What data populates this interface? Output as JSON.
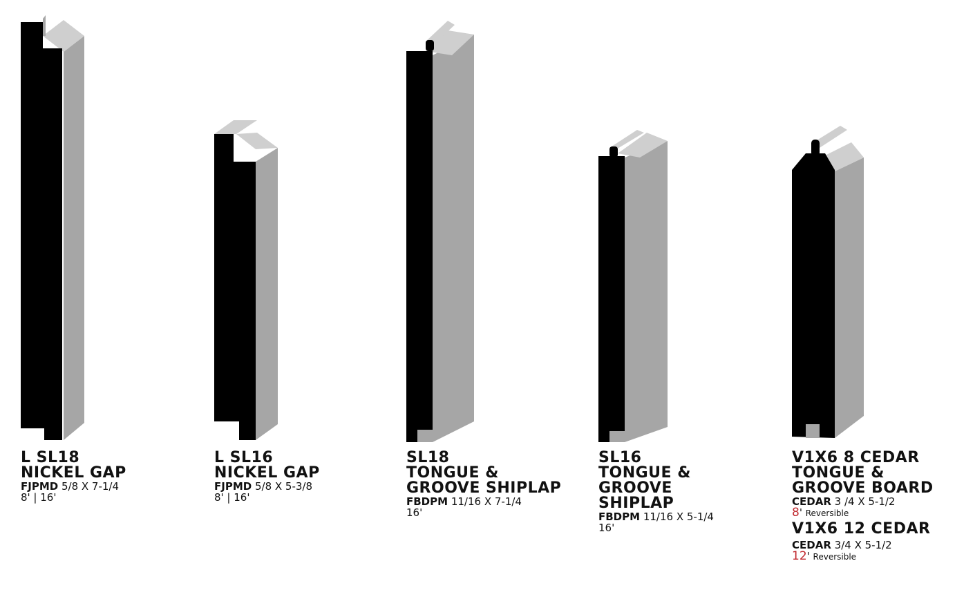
{
  "colors": {
    "face": "#000000",
    "side": "#a6a6a6",
    "top": "#cfcfcf",
    "accent": "#c0272d"
  },
  "products": [
    {
      "title_lines": [
        "L SL18",
        "NICKEL GAP"
      ],
      "spec": {
        "code": "FJPMD",
        "size": "5/8 X 7-1/4"
      },
      "lengths": "8' | 16'"
    },
    {
      "title_lines": [
        "L SL16",
        "NICKEL GAP"
      ],
      "spec": {
        "code": "FJPMD",
        "size": "5/8 X 5-3/8"
      },
      "lengths": "8' | 16'"
    },
    {
      "title_lines": [
        "SL18",
        "TONGUE &",
        "GROOVE SHIPLAP"
      ],
      "spec": {
        "code": "FBDPM",
        "size": "11/16 X 7-1/4"
      },
      "lengths": "16'"
    },
    {
      "title_lines": [
        "SL16",
        "TONGUE &",
        "GROOVE",
        "SHIPLAP"
      ],
      "spec": {
        "code": "FBDPM",
        "size": "11/16 X 5-1/4"
      },
      "lengths": "16'"
    },
    {
      "title_lines": [
        "V1X6 8 CEDAR",
        "TONGUE &",
        "GROOVE BOARD"
      ],
      "spec": {
        "code": "CEDAR",
        "size": "3 /4 X 5-1/2"
      },
      "length_value": "8",
      "length_unit": "'",
      "length_note": "Reversible",
      "extra": {
        "title": "V1X6 12 CEDAR",
        "spec": {
          "code": "CEDAR",
          "size": "3/4 X 5-1/2"
        },
        "length_value": "12",
        "length_unit": "'",
        "length_note": "Reversible"
      }
    }
  ]
}
